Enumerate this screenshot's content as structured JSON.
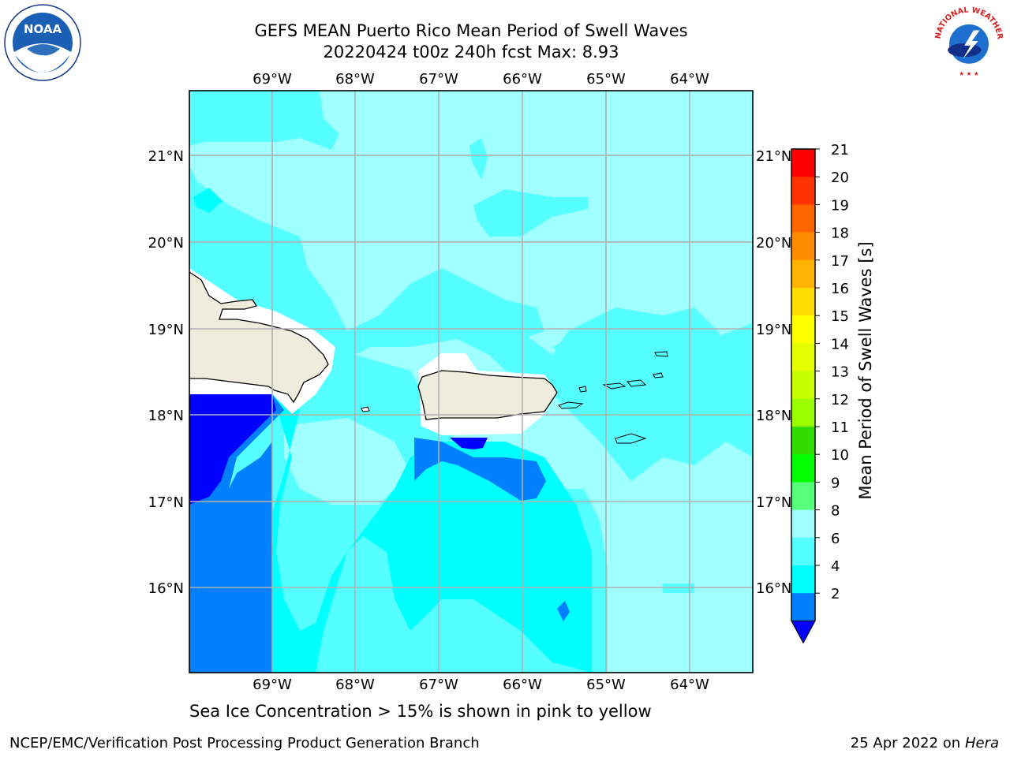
{
  "header": {
    "title_line1": "GEFS MEAN Puerto Rico Mean Period of Swell Waves",
    "title_line2": "20220424 t00z 240h fcst   Max: 8.93"
  },
  "map": {
    "lon_labels": [
      "69°W",
      "68°W",
      "67°W",
      "66°W",
      "65°W",
      "64°W"
    ],
    "lat_labels": [
      "21°N",
      "20°N",
      "19°N",
      "18°N",
      "17°N",
      "16°N"
    ],
    "fill_colors": {
      "2-4": "#0000ff",
      "4-6": "#0080ff",
      "6-8": "#00ffff",
      "8-9": "#55ffff",
      "9-10": "#a0ffff",
      "land": "#eeecdc",
      "no_data": "#ffffff"
    }
  },
  "colorbar": {
    "label": "Mean Period of Swell Waves [s]",
    "ticks": [
      "21",
      "20",
      "19",
      "18",
      "17",
      "16",
      "15",
      "14",
      "13",
      "12",
      "11",
      "10",
      "9",
      "8",
      "6",
      "4",
      "2"
    ],
    "colors": [
      "#ff0000",
      "#ff3300",
      "#ff6600",
      "#ff8c00",
      "#ffb300",
      "#ffdd00",
      "#ffff00",
      "#e5ff00",
      "#c8ff00",
      "#99ff00",
      "#33dd00",
      "#00ff00",
      "#55ff77",
      "#a0ffff",
      "#55ffff",
      "#00ffff",
      "#0080ff"
    ],
    "extend_color": "#0000ff"
  },
  "caption": "Sea Ice Concentration > 15% is shown in pink to yellow",
  "footer": {
    "left": "NCEP/EMC/Verification Post Processing Product Generation Branch",
    "date": "25 Apr 2022 on ",
    "machine": "Hera"
  },
  "logos": {
    "noaa_text": "NOAA",
    "nws_text": "NATIONAL WEATHER SERVICE"
  }
}
